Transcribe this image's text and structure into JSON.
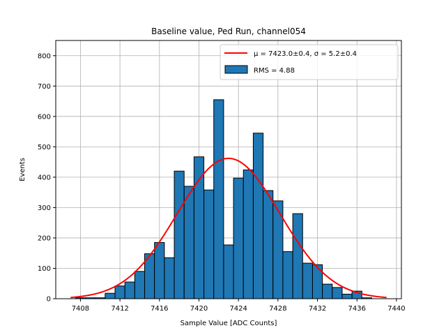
{
  "chart_data": {
    "type": "bar",
    "title": "Baseline value, Ped Run, channel054",
    "xlabel": "Sample Value [ADC Counts]",
    "ylabel": "Events",
    "xlim": [
      7405.5,
      7440.5
    ],
    "ylim": [
      0,
      850
    ],
    "xticks": [
      7408,
      7412,
      7416,
      7420,
      7424,
      7428,
      7432,
      7436,
      7440
    ],
    "yticks": [
      0,
      100,
      200,
      300,
      400,
      500,
      600,
      700,
      800
    ],
    "grid": true,
    "bar_color": "#1f77b4",
    "bar_edge_color": "#000000",
    "fit_color": "#ff0000",
    "bin_width": 1,
    "histogram": {
      "bin_centers": [
        7408,
        7409,
        7410,
        7411,
        7412,
        7413,
        7414,
        7415,
        7416,
        7417,
        7418,
        7419,
        7420,
        7421,
        7422,
        7423,
        7424,
        7425,
        7426,
        7427,
        7428,
        7429,
        7430,
        7431,
        7432,
        7433,
        7434,
        7435,
        7436,
        7437
      ],
      "counts": [
        3,
        3,
        3,
        18,
        42,
        55,
        90,
        148,
        185,
        135,
        420,
        370,
        467,
        358,
        655,
        177,
        397,
        424,
        545,
        356,
        322,
        155,
        280,
        117,
        112,
        48,
        37,
        15,
        25,
        3
      ]
    },
    "fit": {
      "type": "gaussian",
      "mu": 7423.0,
      "sigma": 5.2,
      "amplitude": 462,
      "x_range": [
        7407,
        7439
      ]
    },
    "legend": {
      "position": "top-right",
      "fit_label": "μ = 7423.0±0.4, σ = 5.2±0.4",
      "hist_label": "RMS = 4.88"
    }
  }
}
